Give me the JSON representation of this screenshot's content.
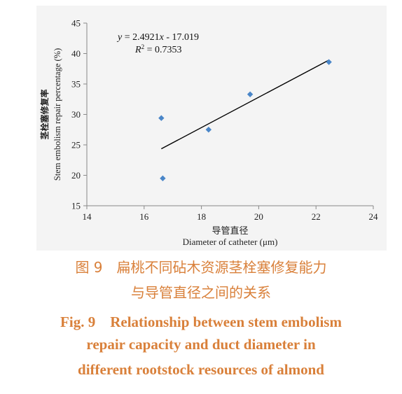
{
  "chart_data": {
    "type": "scatter",
    "xlim": [
      14,
      24
    ],
    "ylim": [
      15,
      45
    ],
    "x_ticks": [
      14,
      16,
      18,
      20,
      22,
      24
    ],
    "y_ticks": [
      15,
      20,
      25,
      30,
      35,
      40,
      45
    ],
    "xlabel_zh": "导管直径",
    "xlabel": "Diameter of catheter (μm)",
    "ylabel_zh": "茎栓塞修复率",
    "ylabel": "Stem embolism repair percentage (%)",
    "points": [
      {
        "x": 16.6,
        "y": 29.4
      },
      {
        "x": 16.65,
        "y": 19.5
      },
      {
        "x": 18.25,
        "y": 27.5
      },
      {
        "x": 19.7,
        "y": 33.3
      },
      {
        "x": 22.45,
        "y": 38.6
      }
    ],
    "trendline": {
      "slope": 2.4921,
      "intercept": -17.019,
      "x_range": [
        16.6,
        22.45
      ]
    },
    "equation": {
      "y": "y",
      "eq": " = 2.4921",
      "x": "x",
      "rest": " - 17.019"
    },
    "r2": {
      "r": "R",
      "sup": "2",
      "rest": " = 0.7353"
    },
    "grid": false,
    "marker_color": "#4a86c8",
    "line_color": "#000000",
    "axis_color": "#888888"
  },
  "caption": {
    "zh_line1": "图 9　扁桃不同砧木资源茎栓塞修复能力",
    "zh_line2": "与导管直径之间的关系",
    "en_line1": "Fig. 9　Relationship between stem embolism",
    "en_line2": "repair capacity and duct diameter in",
    "en_line3": "different rootstock resources of almond"
  },
  "colors": {
    "caption": "#d9803a",
    "panel": "#f4f4f4"
  }
}
